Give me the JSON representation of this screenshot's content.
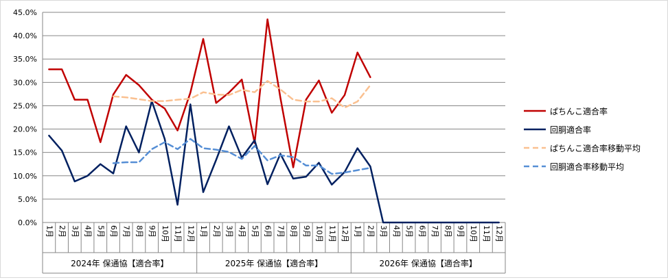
{
  "chart_data": {
    "type": "line",
    "ylim": [
      0,
      45
    ],
    "y_ticks": [
      "0.0%",
      "5.0%",
      "10.0%",
      "15.0%",
      "20.0%",
      "25.0%",
      "30.0%",
      "35.0%",
      "40.0%",
      "45.0%"
    ],
    "y_tick_values": [
      0,
      5,
      10,
      15,
      20,
      25,
      30,
      35,
      40,
      45
    ],
    "grid": "horizontal",
    "legend_position": "right",
    "months": [
      "1月",
      "2月",
      "3月",
      "4月",
      "5月",
      "6月",
      "7月",
      "8月",
      "9月",
      "10月",
      "11月",
      "12月",
      "1月",
      "2月",
      "3月",
      "4月",
      "5月",
      "6月",
      "7月",
      "8月",
      "9月",
      "10月",
      "11月",
      "12月",
      "1月",
      "2月",
      "3月",
      "4月",
      "5月",
      "6月",
      "7月",
      "8月",
      "9月",
      "10月",
      "11月",
      "12月"
    ],
    "groups": [
      {
        "label": "2024年 保通協【適合率】",
        "start": 0,
        "end": 11
      },
      {
        "label": "2025年 保通協【適合率】",
        "start": 12,
        "end": 23
      },
      {
        "label": "2026年 保通協【適合率】",
        "start": 24,
        "end": 35
      }
    ],
    "series": [
      {
        "name": "ぱちんこ適合率",
        "color": "#c00000",
        "dash": "none",
        "width": 2.5,
        "values": [
          32.8,
          32.8,
          26.3,
          26.3,
          17.2,
          27.4,
          31.6,
          29.4,
          26.3,
          24.4,
          19.7,
          27.8,
          39.3,
          25.6,
          27.8,
          30.6,
          17.0,
          43.5,
          26.7,
          11.8,
          26.3,
          30.4,
          23.5,
          27.3,
          36.4,
          31.1,
          null,
          null,
          null,
          null,
          null,
          null,
          null,
          null,
          null,
          null
        ]
      },
      {
        "name": "回胴適合率",
        "color": "#002060",
        "dash": "none",
        "width": 2.5,
        "values": [
          18.6,
          15.4,
          8.8,
          10.0,
          12.5,
          10.5,
          20.6,
          15.0,
          26.0,
          17.9,
          3.8,
          25.3,
          6.5,
          13.4,
          20.6,
          13.9,
          17.6,
          8.2,
          14.7,
          9.4,
          9.8,
          12.8,
          8.1,
          10.8,
          15.9,
          12.0,
          0,
          0,
          0,
          0,
          0,
          0,
          0,
          0,
          0,
          0
        ]
      },
      {
        "name": "ぱちんこ適合率移動平均",
        "color": "#fac090",
        "dash": "8,5",
        "width": 2.5,
        "values": [
          null,
          null,
          null,
          null,
          null,
          27.0,
          26.8,
          26.4,
          26.0,
          26.0,
          26.3,
          26.5,
          27.9,
          27.4,
          27.3,
          28.4,
          27.9,
          30.3,
          28.5,
          26.3,
          25.9,
          25.9,
          26.6,
          24.6,
          25.9,
          29.4,
          null,
          null,
          null,
          null,
          null,
          null,
          null,
          null,
          null,
          null
        ]
      },
      {
        "name": "回胴適合率移動平均",
        "color": "#558ed5",
        "dash": "8,5",
        "width": 2.5,
        "values": [
          null,
          null,
          null,
          null,
          null,
          12.7,
          12.9,
          12.9,
          15.7,
          17.2,
          15.7,
          17.9,
          15.9,
          15.6,
          15.1,
          13.6,
          16.4,
          13.3,
          14.4,
          14.0,
          12.2,
          12.2,
          10.4,
          10.7,
          11.2,
          11.7,
          null,
          null,
          null,
          null,
          null,
          null,
          null,
          null,
          null,
          null
        ]
      }
    ]
  }
}
